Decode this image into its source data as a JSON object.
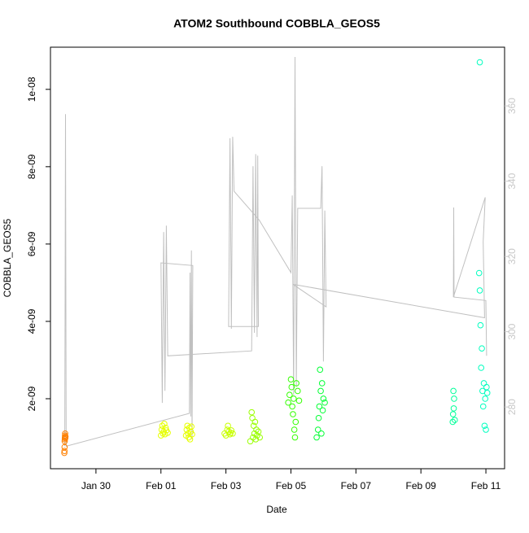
{
  "chart_data": {
    "type": "scatter",
    "title": "ATOM2 Southbound COBBLA_GEOS5",
    "xlabel": "Date",
    "ylabel": "COBBLA_GEOS5",
    "xlim": [
      "01-28 14:24",
      "02-11 13:48"
    ],
    "xticks": [
      {
        "value": "01-30",
        "label": "Jan 30"
      },
      {
        "value": "02-01",
        "label": "Feb 01"
      },
      {
        "value": "02-03",
        "label": "Feb 03"
      },
      {
        "value": "02-05",
        "label": "Feb 05"
      },
      {
        "value": "02-07",
        "label": "Feb 07"
      },
      {
        "value": "02-09",
        "label": "Feb 09"
      },
      {
        "value": "02-11",
        "label": "Feb 11"
      }
    ],
    "ylim": [
      1.9e-10,
      1.109e-08
    ],
    "yticks": [
      {
        "value": 2e-09,
        "label": "2e-09"
      },
      {
        "value": 4e-09,
        "label": "4e-09"
      },
      {
        "value": 6e-09,
        "label": "6e-09"
      },
      {
        "value": 8e-09,
        "label": "8e-09"
      },
      {
        "value": 1e-08,
        "label": "1e-08"
      }
    ],
    "y2lim": [
      263.6,
      375.6
    ],
    "y2ticks": [
      280,
      300,
      320,
      340,
      360
    ],
    "y2_color": "#c8c8c8",
    "series": [
      {
        "type": "line",
        "axis": "y2",
        "color": "#c0c0c0",
        "x": [
          "01-29 01:00",
          "01-29 01:30",
          "01-29 02:00",
          "02-01 21:00",
          "02-01 21:30",
          "02-01 22:00",
          "02-01 22:30",
          "02-01 23:00",
          "02-01 23:30",
          "02-01 00:00",
          "02-01 01:00",
          "02-01 02:00",
          "02-01 03:00",
          "02-01 04:00",
          "02-01 05:00",
          "02-03 19:00",
          "02-03 20:00",
          "02-03 21:00",
          "02-03 22:00",
          "02-03 23:00",
          "02-03 23:30",
          "02-04 00:00",
          "02-03 02:00",
          "02-03 03:00",
          "02-03 04:00",
          "02-03 05:00",
          "02-03 06:00",
          "02-04 00:30",
          "02-05 00:00",
          "02-05 01:00",
          "02-05 02:00",
          "02-05 03:00",
          "02-05 04:00",
          "02-05 05:00",
          "02-05 22:00",
          "02-05 23:00",
          "02-06 00:00",
          "02-06 01:00",
          "02-06 02:00",
          "02-05 01:30",
          "02-10 23:00",
          "02-10 22:00",
          "02-10 23:30",
          "02-10 00:00",
          "02-10 00:15",
          "02-10 00:30",
          "02-11 00:00",
          "02-11 00:30"
        ],
        "values": [
          269.6,
          357.8,
          269.6,
          278.3,
          315.7,
          277.5,
          321.6,
          271.4,
          317.6,
          318.3,
          281.1,
          326.5,
          284.3,
          328.2,
          293.6,
          294.9,
          344.0,
          299.7,
          347.2,
          298.6,
          346.8,
          301.4,
          301.4,
          351.4,
          300.8,
          351.8,
          337.3,
          329.7,
          315.7,
          336.2,
          283.2,
          373.0,
          285.4,
          332.8,
          332.8,
          344.0,
          292.1,
          332.2,
          306.6,
          312.6,
          303.7,
          323.9,
          335.7,
          309.2,
          333.0,
          309.2,
          308.3,
          293.6
        ]
      },
      {
        "color": "#ff8000",
        "x": [
          "01-29 00:40",
          "01-29 00:45",
          "01-29 00:50",
          "01-29 00:55",
          "01-29 01:00",
          "01-29 01:05",
          "01-29 01:10",
          "01-29 01:15",
          "01-29 01:20",
          "01-29 01:30"
        ],
        "values": [
          6e-10,
          6.5e-10,
          7.5e-10,
          9e-10,
          9.5e-10,
          1e-09,
          1.05e-09,
          1.1e-09,
          9.8e-10,
          1.02e-09
        ]
      },
      {
        "color": "#e6ff00",
        "x": [
          "02-01 00:00",
          "02-01 00:30",
          "02-01 01:00",
          "02-01 01:30",
          "02-01 02:00",
          "02-01 02:30",
          "02-01 03:00",
          "02-01 03:30",
          "02-01 04:00",
          "02-01 05:00"
        ],
        "values": [
          1.05e-09,
          1.2e-09,
          1.3e-09,
          1.1e-09,
          1.15e-09,
          1.35e-09,
          1.08e-09,
          1.25e-09,
          1.18e-09,
          1.12e-09
        ]
      },
      {
        "color": "#e6ff00",
        "x": [
          "02-01 18:30",
          "02-01 19:00",
          "02-01 19:30",
          "02-01 20:00",
          "02-01 20:30",
          "02-01 21:00",
          "02-01 21:30",
          "02-01 22:00",
          "02-01 22:30",
          "02-01 23:00"
        ],
        "values": [
          1.05e-09,
          1.2e-09,
          1.3e-09,
          1.1e-09,
          1e-09,
          1.25e-09,
          9.5e-10,
          1.15e-09,
          1.28e-09,
          1.08e-09
        ]
      },
      {
        "color": "#c8ff00",
        "x": [
          "02-02 23:00",
          "02-03 00:00",
          "02-03 01:00",
          "02-03 01:30",
          "02-03 02:00",
          "02-03 03:00",
          "02-03 03:30",
          "02-03 04:00",
          "02-03 05:00"
        ],
        "values": [
          1.1e-09,
          1.05e-09,
          1.2e-09,
          1.3e-09,
          1.15e-09,
          1.08e-09,
          1.12e-09,
          1.18e-09,
          1.1e-09
        ]
      },
      {
        "color": "#99ff00",
        "x": [
          "02-03 18:00",
          "02-03 19:00",
          "02-03 19:30",
          "02-03 20:00",
          "02-03 20:30",
          "02-03 21:00",
          "02-03 21:30",
          "02-03 22:00",
          "02-03 22:30",
          "02-03 23:00",
          "02-04 00:00",
          "02-04 01:00"
        ],
        "values": [
          9e-10,
          1.65e-09,
          1.5e-09,
          1e-09,
          1.3e-09,
          1.1e-09,
          1.4e-09,
          9.5e-10,
          1.2e-09,
          1.05e-09,
          1.15e-09,
          1e-09
        ]
      },
      {
        "color": "#33ff00",
        "x": [
          "02-04 22:00",
          "02-04 23:00",
          "02-05 00:00",
          "02-05 00:30",
          "02-05 01:00",
          "02-05 01:30",
          "02-05 02:00",
          "02-05 02:30",
          "02-05 03:00",
          "02-05 03:30",
          "02-05 04:00",
          "02-05 05:00",
          "02-05 06:00"
        ],
        "values": [
          1.9e-09,
          2.1e-09,
          2.5e-09,
          2.3e-09,
          1.8e-09,
          1.6e-09,
          2e-09,
          1.2e-09,
          1e-09,
          1.4e-09,
          2.4e-09,
          2.2e-09,
          1.95e-09
        ]
      },
      {
        "color": "#00ff33",
        "x": [
          "02-05 19:00",
          "02-05 20:00",
          "02-05 20:30",
          "02-05 21:00",
          "02-05 21:30",
          "02-05 22:00",
          "02-05 22:30",
          "02-05 23:00",
          "02-05 23:30",
          "02-06 00:00",
          "02-06 01:00"
        ],
        "values": [
          1e-09,
          1.2e-09,
          1.5e-09,
          1.8e-09,
          2.75e-09,
          2.2e-09,
          1.1e-09,
          2.4e-09,
          1.7e-09,
          2e-09,
          1.9e-09
        ]
      },
      {
        "color": "#00ff99",
        "x": [
          "02-09 23:30",
          "02-09 23:45",
          "02-10 00:00",
          "02-10 00:15",
          "02-10 00:30",
          "02-10 01:00"
        ],
        "values": [
          1.4e-09,
          1.6e-09,
          2.2e-09,
          1.75e-09,
          2e-09,
          1.45e-09
        ]
      },
      {
        "color": "#00ffbf",
        "x": [
          "02-10 19:00",
          "02-10 19:30",
          "02-10 20:00",
          "02-10 20:30",
          "02-10 21:00",
          "02-10 21:30",
          "02-10 22:00",
          "02-10 22:30",
          "02-10 23:00",
          "02-10 23:30",
          "02-11 00:00",
          "02-11 00:30",
          "02-11 01:00",
          "02-10 19:30"
        ],
        "values": [
          5.25e-09,
          4.8e-09,
          3.9e-09,
          2.8e-09,
          3.3e-09,
          2.2e-09,
          1.8e-09,
          2.4e-09,
          1.3e-09,
          2e-09,
          1.2e-09,
          2.3e-09,
          2.15e-09,
          1.07e-08
        ]
      }
    ]
  }
}
